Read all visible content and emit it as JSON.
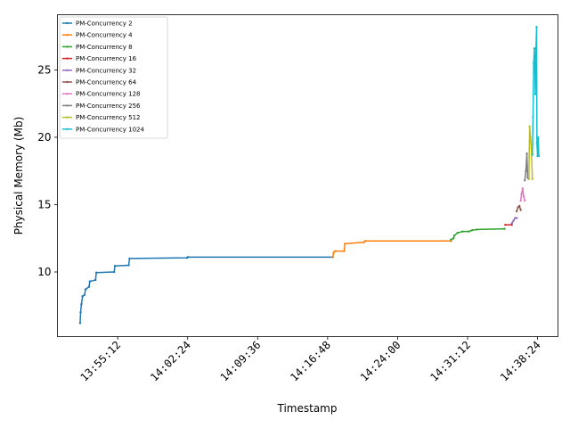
{
  "chart_data": {
    "type": "line",
    "title": "",
    "xlabel": "Timestamp",
    "ylabel": "Physical Memory (Mb)",
    "x_unit": "seconds since 00:00",
    "xlim": [
      49740,
      52830
    ],
    "ylim": [
      5.2,
      29.1
    ],
    "xticks": [
      {
        "value": 50112,
        "label": "13:55:12"
      },
      {
        "value": 50544,
        "label": "14:02:24"
      },
      {
        "value": 50976,
        "label": "14:09:36"
      },
      {
        "value": 51408,
        "label": "14:16:48"
      },
      {
        "value": 51840,
        "label": "14:24:00"
      },
      {
        "value": 52272,
        "label": "14:31:12"
      },
      {
        "value": 52704,
        "label": "14:38:24"
      }
    ],
    "yticks": [
      10,
      15,
      20,
      25
    ],
    "legend": "upper-left",
    "series": [
      {
        "name": "PM-Concurrency 2",
        "color": "#1f77b4",
        "points": [
          [
            49880,
            6.2
          ],
          [
            49883,
            7.0
          ],
          [
            49888,
            7.6
          ],
          [
            49895,
            8.2
          ],
          [
            49908,
            8.3
          ],
          [
            49913,
            8.7
          ],
          [
            49935,
            8.9
          ],
          [
            49940,
            9.3
          ],
          [
            49975,
            9.4
          ],
          [
            49980,
            9.95
          ],
          [
            50090,
            10.0
          ],
          [
            50095,
            10.45
          ],
          [
            50180,
            10.5
          ],
          [
            50185,
            11.0
          ],
          [
            50540,
            11.05
          ],
          [
            50545,
            11.1
          ],
          [
            51440,
            11.1
          ]
        ]
      },
      {
        "name": "PM-Concurrency 4",
        "color": "#ff7f0e",
        "points": [
          [
            51440,
            11.1
          ],
          [
            51445,
            11.45
          ],
          [
            51455,
            11.55
          ],
          [
            51510,
            11.55
          ],
          [
            51515,
            12.1
          ],
          [
            51630,
            12.2
          ],
          [
            51640,
            12.3
          ],
          [
            52170,
            12.3
          ]
        ]
      },
      {
        "name": "PM-Concurrency 8",
        "color": "#2ca02c",
        "points": [
          [
            52170,
            12.4
          ],
          [
            52185,
            12.5
          ],
          [
            52190,
            12.7
          ],
          [
            52210,
            12.9
          ],
          [
            52240,
            13.0
          ],
          [
            52280,
            13.0
          ],
          [
            52300,
            13.1
          ],
          [
            52330,
            13.15
          ],
          [
            52500,
            13.2
          ]
        ]
      },
      {
        "name": "PM-Concurrency 16",
        "color": "#d62728",
        "points": [
          [
            52505,
            13.5
          ],
          [
            52545,
            13.5
          ]
        ]
      },
      {
        "name": "PM-Concurrency 32",
        "color": "#9467bd",
        "points": [
          [
            52545,
            13.6
          ],
          [
            52555,
            13.8
          ],
          [
            52565,
            14.0
          ],
          [
            52575,
            14.0
          ]
        ]
      },
      {
        "name": "PM-Concurrency 64",
        "color": "#8c564b",
        "points": [
          [
            52575,
            14.5
          ],
          [
            52583,
            14.8
          ],
          [
            52592,
            14.9
          ],
          [
            52600,
            14.6
          ]
        ]
      },
      {
        "name": "PM-Concurrency 128",
        "color": "#e377c2",
        "points": [
          [
            52600,
            15.3
          ],
          [
            52605,
            15.8
          ],
          [
            52612,
            16.2
          ],
          [
            52618,
            15.6
          ],
          [
            52625,
            15.3
          ]
        ]
      },
      {
        "name": "PM-Concurrency 256",
        "color": "#7f7f7f",
        "points": [
          [
            52625,
            16.8
          ],
          [
            52632,
            17.5
          ],
          [
            52638,
            18.8
          ],
          [
            52643,
            17.0
          ],
          [
            52650,
            16.9
          ]
        ]
      },
      {
        "name": "PM-Concurrency 512",
        "color": "#bcbd22",
        "points": [
          [
            52650,
            16.9
          ],
          [
            52655,
            20.8
          ],
          [
            52660,
            20.0
          ],
          [
            52666,
            19.2
          ],
          [
            52672,
            16.9
          ]
        ]
      },
      {
        "name": "PM-Concurrency 1024",
        "color": "#17becf",
        "points": [
          [
            52672,
            18.7
          ],
          [
            52676,
            21.5
          ],
          [
            52680,
            25.5
          ],
          [
            52684,
            26.6
          ],
          [
            52688,
            24.8
          ],
          [
            52690,
            23.2
          ],
          [
            52694,
            26.5
          ],
          [
            52698,
            28.2
          ],
          [
            52700,
            19.5
          ],
          [
            52704,
            18.6
          ],
          [
            52708,
            20.0
          ],
          [
            52712,
            18.6
          ]
        ]
      }
    ]
  }
}
